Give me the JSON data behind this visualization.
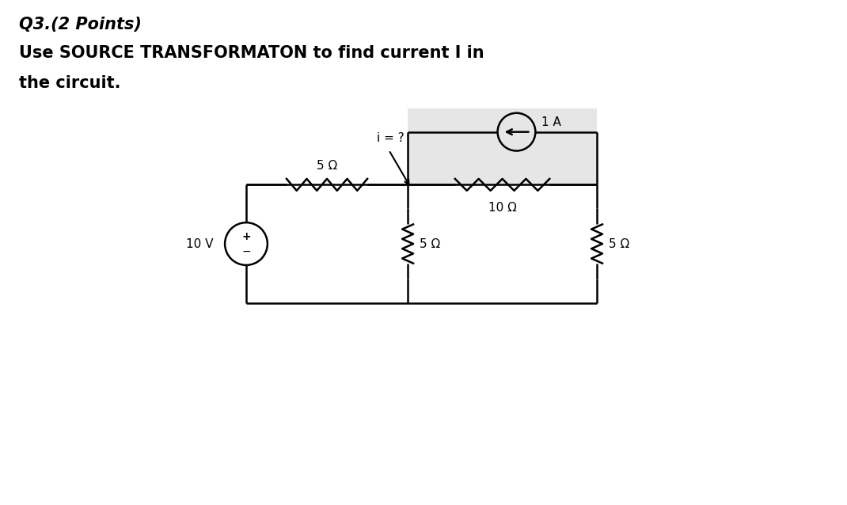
{
  "title_line1": "Q3.(2 Points)",
  "title_line2": "Use SOURCE TRANSFORMATON to find current I in",
  "title_line3": "the circuit.",
  "bg_color": "#ffffff",
  "circuit_bg_color": "#e6e6e6",
  "text_color": "#000000",
  "line_color": "#000000",
  "fig_width": 10.7,
  "fig_height": 6.38,
  "dpi": 100,
  "xL": 3.1,
  "xM": 5.15,
  "xR": 7.55,
  "yT": 4.05,
  "yB": 2.55,
  "yCS": 4.72,
  "vs_r": 0.27,
  "cs_r": 0.24
}
